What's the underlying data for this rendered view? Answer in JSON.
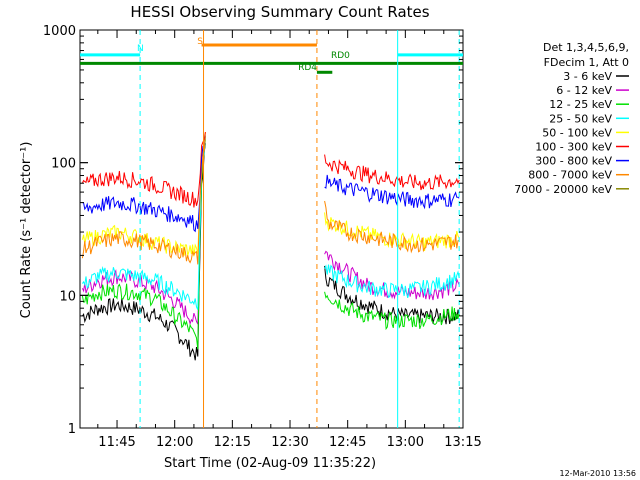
{
  "chart_data": {
    "type": "line",
    "title": "HESSI Observing Summary Count Rates",
    "xlabel": "Start Time (02-Aug-09 11:35:22)",
    "ylabel": "Count Rate (s⁻¹ detector⁻¹)",
    "x_scale": "linear",
    "y_scale": "log",
    "xlim": [
      "11:35:22",
      "13:15:00"
    ],
    "ylim": [
      1,
      1000
    ],
    "x_ticks": [
      "11:45",
      "12:00",
      "12:15",
      "12:30",
      "12:45",
      "13:00",
      "13:15"
    ],
    "y_ticks": [
      "1",
      "10",
      "100",
      "1000"
    ],
    "grid": false,
    "legend_position": "right",
    "legend_header": [
      "Det 1,3,4,5,6,9,",
      "FDecim 1, Att 0"
    ],
    "series": [
      {
        "name": "3 - 6 keV",
        "color": "#000000",
        "x": [
          "11:36",
          "11:40",
          "11:45",
          "11:50",
          "11:55",
          "12:00",
          "12:04",
          "12:06",
          "12:07",
          "12:08",
          "12:39",
          "12:40",
          "12:45",
          "12:50",
          "12:55",
          "13:00",
          "13:05",
          "13:10",
          "13:14"
        ],
        "y": [
          7,
          8,
          8.5,
          8,
          7,
          5.5,
          4,
          3.5,
          70,
          140,
          15,
          13,
          10,
          8.5,
          7.5,
          7,
          7,
          7,
          7
        ]
      },
      {
        "name": "6 - 12 keV",
        "color": "#cc00cc",
        "x": [
          "11:36",
          "11:40",
          "11:45",
          "11:50",
          "11:55",
          "12:00",
          "12:04",
          "12:06",
          "12:07",
          "12:08",
          "12:39",
          "12:40",
          "12:45",
          "12:50",
          "12:55",
          "13:00",
          "13:05",
          "13:10",
          "13:14"
        ],
        "y": [
          11,
          13,
          14,
          13,
          11.5,
          9,
          7,
          6,
          90,
          160,
          22,
          20,
          15,
          12,
          11,
          10.5,
          10.5,
          11,
          12
        ]
      },
      {
        "name": "12 - 25 keV",
        "color": "#00e000",
        "x": [
          "11:36",
          "11:40",
          "11:45",
          "11:50",
          "11:55",
          "12:00",
          "12:04",
          "12:06",
          "12:07",
          "12:08",
          "12:39",
          "12:40",
          "12:45",
          "12:50",
          "12:55",
          "13:00",
          "13:05",
          "13:10",
          "13:14"
        ],
        "y": [
          9,
          10.5,
          11,
          10.5,
          9.5,
          7,
          5.5,
          4.5,
          80,
          150,
          11,
          10,
          8,
          7,
          6.5,
          6.5,
          6.5,
          7,
          7.5
        ]
      },
      {
        "name": "25 - 50 keV",
        "color": "#00ffff",
        "x": [
          "11:36",
          "11:40",
          "11:45",
          "11:50",
          "11:55",
          "12:00",
          "12:04",
          "12:06",
          "12:07",
          "12:08",
          "12:39",
          "12:40",
          "12:45",
          "12:50",
          "12:55",
          "13:00",
          "13:05",
          "13:10",
          "13:14"
        ],
        "y": [
          12,
          14,
          15,
          14,
          13,
          11,
          9.5,
          9,
          90,
          160,
          16,
          15,
          13,
          11.5,
          11,
          11,
          11.5,
          12.5,
          13.5
        ]
      },
      {
        "name": "50 - 100 keV",
        "color": "#ffff00",
        "x": [
          "11:36",
          "11:40",
          "11:45",
          "11:50",
          "11:55",
          "12:00",
          "12:04",
          "12:06",
          "12:07",
          "12:08",
          "12:39",
          "12:40",
          "12:45",
          "12:50",
          "12:55",
          "13:00",
          "13:05",
          "13:10",
          "13:14"
        ],
        "y": [
          26,
          28,
          30,
          28,
          25,
          23,
          22,
          21,
          100,
          170,
          38,
          36,
          32,
          29,
          27,
          26,
          25,
          26,
          27
        ]
      },
      {
        "name": "100 - 300 keV",
        "color": "#ff0000",
        "x": [
          "11:36",
          "11:40",
          "11:45",
          "11:50",
          "11:55",
          "12:00",
          "12:04",
          "12:06",
          "12:07",
          "12:08",
          "12:39",
          "12:40",
          "12:45",
          "12:50",
          "12:55",
          "13:00",
          "13:05",
          "13:10",
          "13:14"
        ],
        "y": [
          68,
          75,
          78,
          74,
          68,
          60,
          55,
          52,
          120,
          170,
          108,
          100,
          90,
          82,
          77,
          72,
          70,
          72,
          74
        ]
      },
      {
        "name": "300 - 800 keV",
        "color": "#0000ff",
        "x": [
          "11:36",
          "11:40",
          "11:45",
          "11:50",
          "11:55",
          "12:00",
          "12:04",
          "12:06",
          "12:07",
          "12:08",
          "12:39",
          "12:40",
          "12:45",
          "12:50",
          "12:55",
          "13:00",
          "13:05",
          "13:10",
          "13:14"
        ],
        "y": [
          44,
          48,
          50,
          48,
          44,
          40,
          37,
          34,
          100,
          160,
          75,
          70,
          64,
          60,
          56,
          53,
          52,
          53,
          54
        ]
      },
      {
        "name": "800 - 7000 keV",
        "color": "#ff8800",
        "x": [
          "11:36",
          "11:40",
          "11:45",
          "11:50",
          "11:55",
          "12:00",
          "12:04",
          "12:06",
          "12:07",
          "12:08",
          "12:39",
          "12:40",
          "12:45",
          "12:50",
          "12:55",
          "13:00",
          "13:05",
          "13:10",
          "13:14"
        ],
        "y": [
          22,
          25,
          27,
          26,
          24,
          22,
          20,
          19,
          90,
          160,
          48,
          35,
          30,
          28,
          26,
          25,
          24,
          25,
          26
        ]
      },
      {
        "name": "7000 - 20000 keV",
        "color": "#888800",
        "x": [],
        "y": []
      }
    ],
    "annotations": [
      {
        "label": "N",
        "color": "#00ffff",
        "x_start": "11:35:22",
        "x_end": "11:51",
        "level": 650
      },
      {
        "label": "",
        "color": "#00ffff",
        "x_start": "12:58",
        "x_end": "13:15:00",
        "level": 650
      },
      {
        "label": "S",
        "color": "#ff8800",
        "x_start": "12:07",
        "x_end": "12:37",
        "level": 770
      },
      {
        "label": "",
        "color": "#008800",
        "x_start": "11:35:22",
        "x_end": "13:15:00",
        "level": 560
      },
      {
        "label": "RD4",
        "color": "#008800",
        "x_start": "12:37",
        "x_end": "12:41",
        "level": 480
      },
      {
        "label": "RD0",
        "color": "#008800",
        "x_start": "",
        "x_end": "",
        "level": 0
      }
    ],
    "vertical_markers": [
      {
        "time": "11:51",
        "color": "#00ffff",
        "style": "dashed"
      },
      {
        "time": "12:07:30",
        "color": "#ff8800",
        "style": "solid"
      },
      {
        "time": "12:37",
        "color": "#ff8800",
        "style": "dashed"
      },
      {
        "time": "12:58",
        "color": "#00ffff",
        "style": "solid"
      },
      {
        "time": "13:14",
        "color": "#00ffff",
        "style": "dashed"
      }
    ]
  },
  "footer": {
    "timestamp": "12-Mar-2010 13:56"
  }
}
